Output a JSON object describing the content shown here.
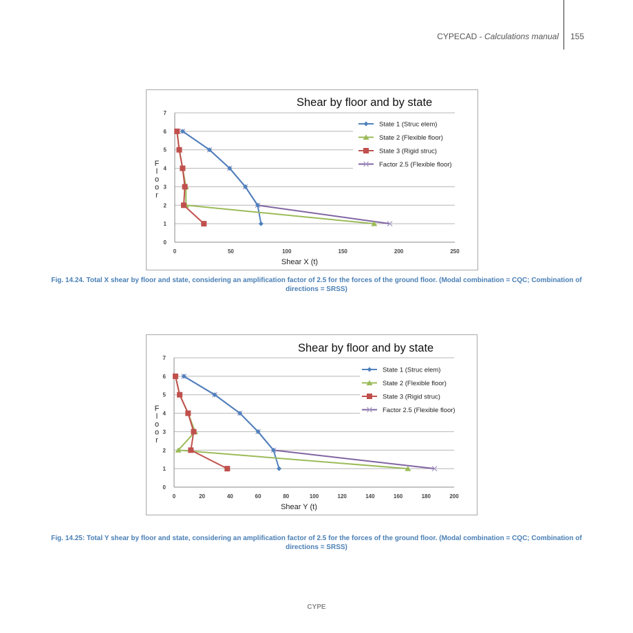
{
  "header": {
    "title_plain": "CYPECAD - ",
    "title_italic": "Calculations manual",
    "page_number": "155"
  },
  "figures": [
    {
      "caption": "Fig. 14.24. Total X shear by floor and state, considering an amplification factor of 2.5 for the forces of the ground floor. (Modal combination = CQC; Combination of directions = SRSS)"
    },
    {
      "caption": "Fig. 14.25: Total Y shear by floor and state, considering an amplification factor of 2.5 for the forces of the ground floor. (Modal combination = CQC; Combination of directions = SRSS)"
    }
  ],
  "footer": {
    "text": "CYPE"
  },
  "chart_data": [
    {
      "type": "line",
      "title": "Shear by floor and by state",
      "xlabel": "Shear X (t)",
      "ylabel": "Floor",
      "xlim": [
        0,
        250
      ],
      "ylim": [
        0,
        7
      ],
      "xticks": [
        0,
        50,
        100,
        150,
        200,
        250
      ],
      "yticks": [
        0,
        1,
        2,
        3,
        4,
        5,
        6,
        7
      ],
      "grid": "horizontal",
      "legend_position": "upper right",
      "y": [
        6,
        5,
        4,
        3,
        2,
        1
      ],
      "series": [
        {
          "name": "State 1 (Struc elem)",
          "color": "#4f81bd",
          "marker": "diamond",
          "values": [
            7,
            31,
            49,
            63,
            74,
            77
          ]
        },
        {
          "name": "State 2 (Flexible floor)",
          "color": "#9bbb59",
          "marker": "triangle",
          "values": [
            2,
            4,
            7,
            10,
            10,
            178
          ]
        },
        {
          "name": "State 3 (Rigid struc)",
          "color": "#c0504d",
          "marker": "square",
          "values": [
            2,
            4,
            7,
            9,
            8,
            26
          ]
        },
        {
          "name": "Factor 2.5 (Flexible floor)",
          "color": "#8064a2",
          "marker": "x",
          "values": [
            7,
            31,
            49,
            63,
            74,
            192
          ]
        }
      ]
    },
    {
      "type": "line",
      "title": "Shear by floor and by state",
      "xlabel": "Shear Y (t)",
      "ylabel": "Floor",
      "xlim": [
        0,
        200
      ],
      "ylim": [
        0,
        7
      ],
      "xticks": [
        0,
        20,
        40,
        60,
        80,
        100,
        120,
        140,
        160,
        180,
        200
      ],
      "yticks": [
        0,
        1,
        2,
        3,
        4,
        5,
        6,
        7
      ],
      "grid": "horizontal",
      "legend_position": "upper right",
      "y": [
        6,
        5,
        4,
        3,
        2,
        1
      ],
      "series": [
        {
          "name": "State 1 (Struc elem)",
          "color": "#4f81bd",
          "marker": "diamond",
          "values": [
            7,
            29,
            47,
            60,
            71,
            75
          ]
        },
        {
          "name": "State 2 (Flexible floor)",
          "color": "#9bbb59",
          "marker": "triangle",
          "values": [
            1,
            4,
            10,
            15,
            3,
            167
          ]
        },
        {
          "name": "State 3 (Rigid struc)",
          "color": "#c0504d",
          "marker": "square",
          "values": [
            1,
            4,
            10,
            14,
            12,
            38
          ]
        },
        {
          "name": "Factor 2.5 (Flexible floor)",
          "color": "#8064a2",
          "marker": "x",
          "values": [
            7,
            29,
            47,
            60,
            71,
            186
          ]
        }
      ]
    }
  ]
}
